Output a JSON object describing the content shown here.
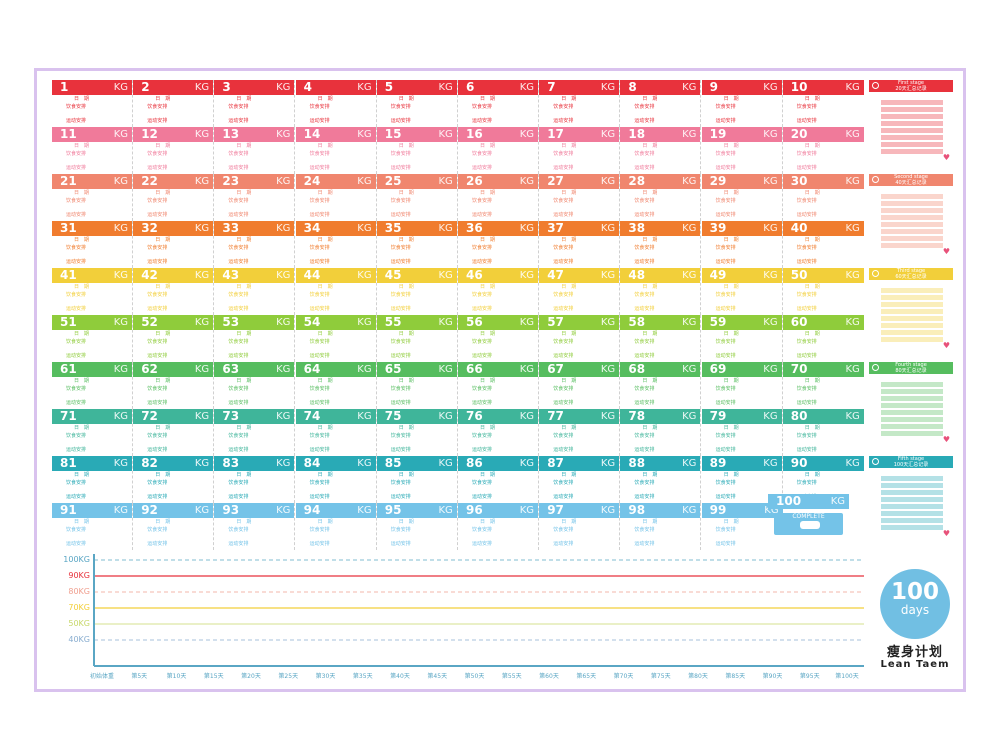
{
  "rows": [
    {
      "color": "#e8323c",
      "cells": [
        {
          "num": "1",
          "kg": "KG"
        },
        {
          "num": "2",
          "kg": "KG"
        },
        {
          "num": "3",
          "kg": "KG"
        },
        {
          "num": "4",
          "kg": "KG"
        },
        {
          "num": "5",
          "kg": "KG"
        },
        {
          "num": "6",
          "kg": "KG"
        },
        {
          "num": "7",
          "kg": "KG"
        },
        {
          "num": "8",
          "kg": "KG"
        },
        {
          "num": "9",
          "kg": "KG"
        },
        {
          "num": "10",
          "kg": "KG"
        }
      ]
    },
    {
      "color": "#f07a9a",
      "cells": [
        {
          "num": "11",
          "kg": "KG"
        },
        {
          "num": "12",
          "kg": "KG"
        },
        {
          "num": "13",
          "kg": "KG"
        },
        {
          "num": "14",
          "kg": "KG"
        },
        {
          "num": "15",
          "kg": "KG"
        },
        {
          "num": "16",
          "kg": "KG"
        },
        {
          "num": "17",
          "kg": "KG"
        },
        {
          "num": "18",
          "kg": "KG"
        },
        {
          "num": "19",
          "kg": "KG"
        },
        {
          "num": "20",
          "kg": "KG"
        }
      ]
    },
    {
      "color": "#f0866e",
      "cells": [
        {
          "num": "21",
          "kg": "KG"
        },
        {
          "num": "22",
          "kg": "KG"
        },
        {
          "num": "23",
          "kg": "KG"
        },
        {
          "num": "24",
          "kg": "KG"
        },
        {
          "num": "25",
          "kg": "KG"
        },
        {
          "num": "26",
          "kg": "KG"
        },
        {
          "num": "27",
          "kg": "KG"
        },
        {
          "num": "28",
          "kg": "KG"
        },
        {
          "num": "29",
          "kg": "KG"
        },
        {
          "num": "30",
          "kg": "KG"
        }
      ]
    },
    {
      "color": "#f07c2e",
      "cells": [
        {
          "num": "31",
          "kg": "KG"
        },
        {
          "num": "32",
          "kg": "KG"
        },
        {
          "num": "33",
          "kg": "KG"
        },
        {
          "num": "34",
          "kg": "KG"
        },
        {
          "num": "35",
          "kg": "KG"
        },
        {
          "num": "36",
          "kg": "KG"
        },
        {
          "num": "37",
          "kg": "KG"
        },
        {
          "num": "38",
          "kg": "KG"
        },
        {
          "num": "39",
          "kg": "KG"
        },
        {
          "num": "40",
          "kg": "KG"
        }
      ]
    },
    {
      "color": "#f2cf3a",
      "cells": [
        {
          "num": "41",
          "kg": "KG"
        },
        {
          "num": "42",
          "kg": "KG"
        },
        {
          "num": "43",
          "kg": "KG"
        },
        {
          "num": "44",
          "kg": "KG"
        },
        {
          "num": "45",
          "kg": "KG"
        },
        {
          "num": "46",
          "kg": "KG"
        },
        {
          "num": "47",
          "kg": "KG"
        },
        {
          "num": "48",
          "kg": "KG"
        },
        {
          "num": "49",
          "kg": "KG"
        },
        {
          "num": "50",
          "kg": "KG"
        }
      ]
    },
    {
      "color": "#8fcc3b",
      "cells": [
        {
          "num": "51",
          "kg": "KG"
        },
        {
          "num": "52",
          "kg": "KG"
        },
        {
          "num": "53",
          "kg": "KG"
        },
        {
          "num": "54",
          "kg": "KG"
        },
        {
          "num": "55",
          "kg": "KG"
        },
        {
          "num": "56",
          "kg": "KG"
        },
        {
          "num": "57",
          "kg": "KG"
        },
        {
          "num": "58",
          "kg": "KG"
        },
        {
          "num": "59",
          "kg": "KG"
        },
        {
          "num": "60",
          "kg": "KG"
        }
      ]
    },
    {
      "color": "#56bd5f",
      "cells": [
        {
          "num": "61",
          "kg": "KG"
        },
        {
          "num": "62",
          "kg": "KG"
        },
        {
          "num": "63",
          "kg": "KG"
        },
        {
          "num": "64",
          "kg": "KG"
        },
        {
          "num": "65",
          "kg": "KG"
        },
        {
          "num": "66",
          "kg": "KG"
        },
        {
          "num": "67",
          "kg": "KG"
        },
        {
          "num": "68",
          "kg": "KG"
        },
        {
          "num": "69",
          "kg": "KG"
        },
        {
          "num": "70",
          "kg": "KG"
        }
      ]
    },
    {
      "color": "#3fb59a",
      "cells": [
        {
          "num": "71",
          "kg": "KG"
        },
        {
          "num": "72",
          "kg": "KG"
        },
        {
          "num": "73",
          "kg": "KG"
        },
        {
          "num": "74",
          "kg": "KG"
        },
        {
          "num": "75",
          "kg": "KG"
        },
        {
          "num": "76",
          "kg": "KG"
        },
        {
          "num": "77",
          "kg": "KG"
        },
        {
          "num": "78",
          "kg": "KG"
        },
        {
          "num": "79",
          "kg": "KG"
        },
        {
          "num": "80",
          "kg": "KG"
        }
      ]
    },
    {
      "color": "#29aab6",
      "cells": [
        {
          "num": "81",
          "kg": "KG"
        },
        {
          "num": "82",
          "kg": "KG"
        },
        {
          "num": "83",
          "kg": "KG"
        },
        {
          "num": "84",
          "kg": "KG"
        },
        {
          "num": "85",
          "kg": "KG"
        },
        {
          "num": "86",
          "kg": "KG"
        },
        {
          "num": "87",
          "kg": "KG"
        },
        {
          "num": "88",
          "kg": "KG"
        },
        {
          "num": "89",
          "kg": "KG"
        },
        {
          "num": "90",
          "kg": "KG"
        }
      ]
    },
    {
      "color": "#74c3e8",
      "cells": [
        {
          "num": "91",
          "kg": "KG"
        },
        {
          "num": "92",
          "kg": "KG"
        },
        {
          "num": "93",
          "kg": "KG"
        },
        {
          "num": "94",
          "kg": "KG"
        },
        {
          "num": "95",
          "kg": "KG"
        },
        {
          "num": "96",
          "kg": "KG"
        },
        {
          "num": "97",
          "kg": "KG"
        },
        {
          "num": "98",
          "kg": "KG"
        },
        {
          "num": "99",
          "kg": "KG"
        }
      ]
    }
  ],
  "cell_sublabels": {
    "date": "日　期",
    "diet": "饮食安排",
    "exercise": "运动安排"
  },
  "goal": {
    "num": "100",
    "kg": "KG",
    "complete": "COMPLETE",
    "color": "#74c3e8"
  },
  "stages": [
    {
      "title": "First stage",
      "subtitle": "20天汇总记录",
      "color": "#e8323c"
    },
    {
      "title": "Second stage",
      "subtitle": "40天汇总记录",
      "color": "#f0866e"
    },
    {
      "title": "Third stage",
      "subtitle": "60天汇总记录",
      "color": "#f2cf3a"
    },
    {
      "title": "Fourth stage",
      "subtitle": "80天汇总记录",
      "color": "#56bd5f"
    },
    {
      "title": "Fifth stage",
      "subtitle": "100天汇总记录",
      "color": "#29aab6"
    }
  ],
  "chart": {
    "y_labels": [
      {
        "text": "100KG",
        "color": "#5aa6c4"
      },
      {
        "text": "90KG",
        "color": "#e8323c"
      },
      {
        "text": "80KG",
        "color": "#f0a090"
      },
      {
        "text": "70KG",
        "color": "#f2cf3a"
      },
      {
        "text": "50KG",
        "color": "#c8d86a"
      },
      {
        "text": "40KG",
        "color": "#8aaed0"
      }
    ],
    "x_labels": [
      "初始体重",
      "第5天",
      "第10天",
      "第15天",
      "第20天",
      "第25天",
      "第30天",
      "第35天",
      "第40天",
      "第45天",
      "第50天",
      "第55天",
      "第60天",
      "第65天",
      "第70天",
      "第75天",
      "第80天",
      "第85天",
      "第90天",
      "第95天",
      "第100天"
    ]
  },
  "badge": {
    "number": "100",
    "unit": "days",
    "color": "#71bfe3"
  },
  "plan_cn": "瘦身计划",
  "plan_en": "Lean Taem"
}
